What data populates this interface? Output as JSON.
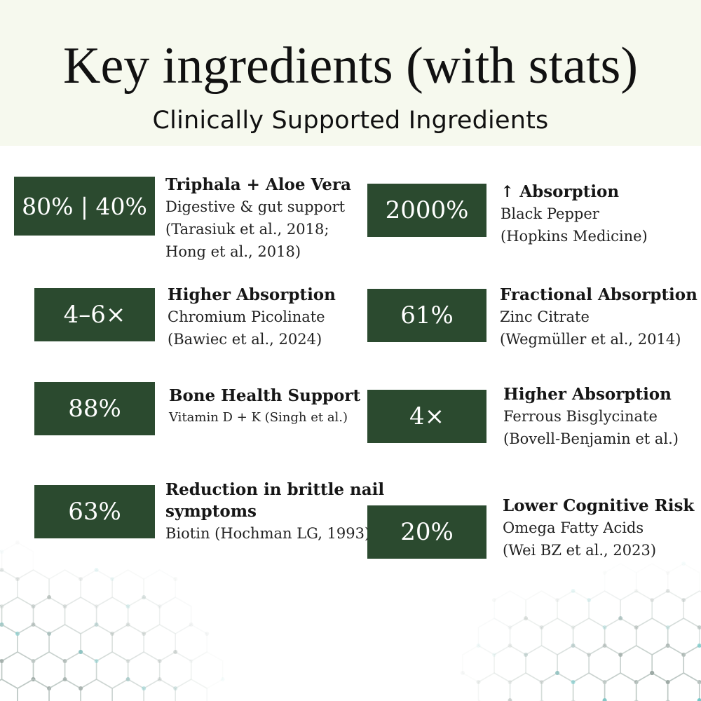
{
  "header": {
    "title": "Key ingredients (with stats)",
    "subtitle": "Clinically Supported Ingredients",
    "background_color": "#f6f9ee"
  },
  "colors": {
    "stat_box": "#2b4a2f",
    "stat_value_text": "#ffffff",
    "pattern_lines": "#bcc7c3",
    "pattern_accent": "#6cc6c6"
  },
  "stats": [
    {
      "value": "80% | 40%",
      "heading": "Triphala + Aloe Vera",
      "lines": [
        "Digestive & gut support",
        "(Tarasiuk et al., 2018;",
        "Hong et al., 2018)"
      ]
    },
    {
      "value": "2000%",
      "heading": "↑ Absorption",
      "lines": [
        "Black Pepper",
        "(Hopkins Medicine)"
      ]
    },
    {
      "value": "4–6×",
      "heading": "Higher Absorption",
      "lines": [
        "Chromium Picolinate",
        "(Bawiec et al., 2024)"
      ]
    },
    {
      "value": "61%",
      "heading": "Fractional Absorption",
      "lines": [
        "Zinc Citrate",
        "(Wegmüller et al., 2014)"
      ]
    },
    {
      "value": "88%",
      "heading": "Bone Health Support",
      "lines": [
        "Vitamin D + K (Singh et al.)"
      ]
    },
    {
      "value": "4×",
      "heading": "Higher Absorption",
      "lines": [
        "Ferrous Bisglycinate",
        "(Bovell-Benjamin et al.)"
      ]
    },
    {
      "value": "63%",
      "heading_lines": [
        "Reduction in brittle nail",
        "symptoms"
      ],
      "lines": [
        "Biotin (Hochman LG, 1993)"
      ]
    },
    {
      "value": "20%",
      "heading": "Lower Cognitive Risk",
      "lines": [
        "Omega Fatty Acids",
        "(Wei BZ et al., 2023)"
      ]
    }
  ]
}
